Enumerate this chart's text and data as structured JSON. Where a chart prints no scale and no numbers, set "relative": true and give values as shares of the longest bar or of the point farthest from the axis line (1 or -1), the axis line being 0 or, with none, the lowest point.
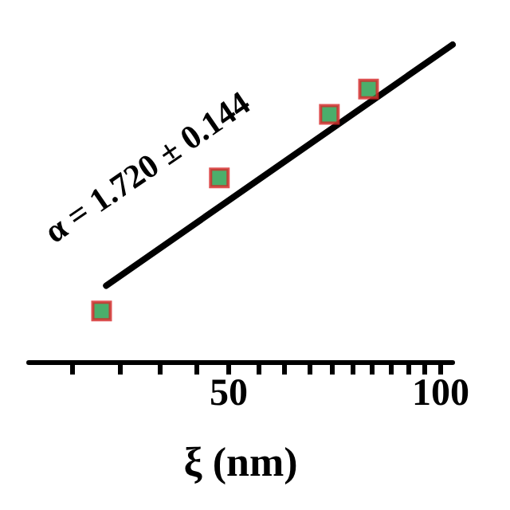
{
  "chart_data": {
    "type": "scatter",
    "xlabel": "ξ (nm)",
    "log": "x",
    "relative": true,
    "marker": "square",
    "xlim": [
      26,
      104
    ],
    "xticks": [
      {
        "value": 30,
        "label": null
      },
      {
        "value": 35,
        "label": null
      },
      {
        "value": 40,
        "label": null
      },
      {
        "value": 45,
        "label": null
      },
      50,
      {
        "value": 55,
        "label": null
      },
      {
        "value": 60,
        "label": null
      },
      {
        "value": 65,
        "label": null
      },
      {
        "value": 70,
        "label": null
      },
      {
        "value": 75,
        "label": null
      },
      {
        "value": 80,
        "label": null
      },
      {
        "value": 85,
        "label": null
      },
      {
        "value": 90,
        "label": null
      },
      {
        "value": 95,
        "label": null
      },
      100
    ],
    "series": [
      {
        "color": "#1e9a46",
        "x": [
          33,
          48.5,
          69.5,
          79
        ],
        "values": [
          0.16,
          0.58,
          0.78,
          0.86
        ]
      },
      {
        "type": "line",
        "color": "#000000",
        "marker": "none",
        "line_style": "solid",
        "x": [
          33.5,
          104
        ],
        "values": [
          0.24,
          1
        ]
      }
    ],
    "annotations": [
      "α = 1.720 ± 0.144"
    ],
    "grid": false
  }
}
